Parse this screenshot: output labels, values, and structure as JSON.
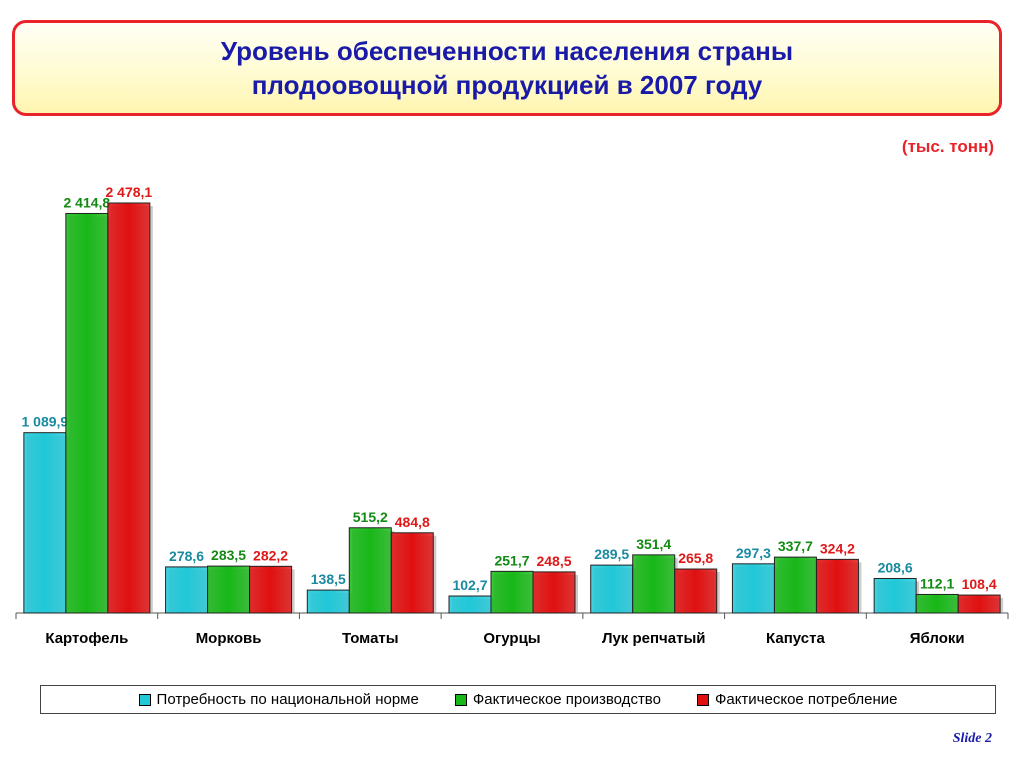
{
  "title": {
    "line1": "Уровень обеспеченности населения страны",
    "line2": "плодоовощной продукцией в 2007 году"
  },
  "units": "(тыс. тонн)",
  "slide_label": "Slide 2",
  "chart_data": {
    "type": "bar",
    "categories": [
      "Картофель",
      "Морковь",
      "Томаты",
      "Огурцы",
      "Лук репчатый",
      "Капуста",
      "Яблоки"
    ],
    "series": [
      {
        "name": "Потребность по национальной норме",
        "color": "#20c8d8",
        "label_color": "#1a8aa0",
        "values": [
          1089.9,
          278.6,
          138.5,
          102.7,
          289.5,
          297.3,
          208.6
        ],
        "labels": [
          "1 089,9",
          "278,6",
          "138,5",
          "102,7",
          "289,5",
          "297,3",
          "208,6"
        ]
      },
      {
        "name": "Фактическое производство",
        "color": "#18b818",
        "label_color": "#138a13",
        "values": [
          2414.8,
          283.5,
          515.2,
          251.7,
          351.4,
          337.7,
          112.1
        ],
        "labels": [
          "2 414,8",
          "283,5",
          "515,2",
          "251,7",
          "351,4",
          "337,7",
          "112,1"
        ]
      },
      {
        "name": "Фактическое потребление",
        "color": "#e01010",
        "label_color": "#e01818",
        "values": [
          2478.1,
          282.2,
          484.8,
          248.5,
          265.8,
          324.2,
          108.4
        ],
        "labels": [
          "2 478,1",
          "282,2",
          "484,8",
          "248,5",
          "265,8",
          "324,2",
          "108,4"
        ]
      }
    ],
    "ylim": [
      0,
      2478.1
    ],
    "grid": false,
    "legend_position": "bottom"
  }
}
